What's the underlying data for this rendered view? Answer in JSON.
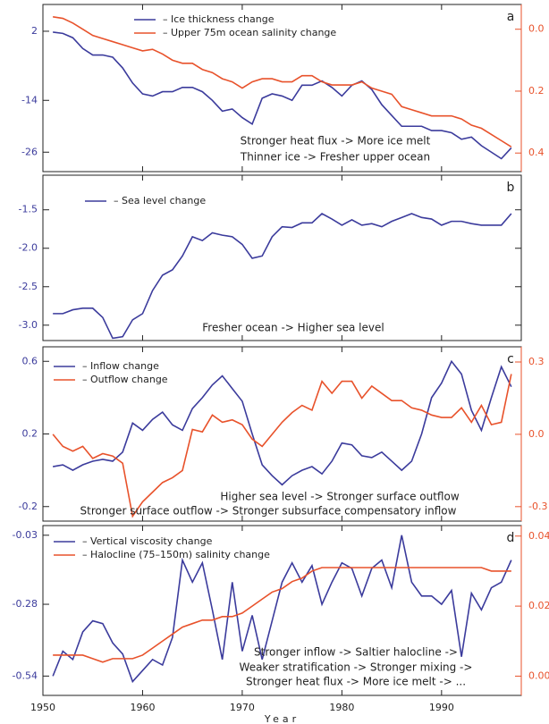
{
  "chart_data": [
    {
      "type": "line",
      "panel_label": "a",
      "x": [
        1951,
        1952,
        1953,
        1954,
        1955,
        1956,
        1957,
        1958,
        1959,
        1960,
        1961,
        1962,
        1963,
        1964,
        1965,
        1966,
        1967,
        1968,
        1969,
        1970,
        1971,
        1972,
        1973,
        1974,
        1975,
        1976,
        1977,
        1978,
        1979,
        1980,
        1981,
        1982,
        1983,
        1984,
        1985,
        1986,
        1987,
        1988,
        1989,
        1990,
        1991,
        1992,
        1993,
        1994,
        1995,
        1996,
        1997
      ],
      "xlim": [
        1950,
        1998
      ],
      "ylim": [
        -30.5,
        8.2
      ],
      "yticks": [
        2,
        -14,
        -26
      ],
      "y2lim": [
        0.46,
        -0.08
      ],
      "y2ticks": [
        {
          "value": 0,
          "label": "0.0"
        },
        {
          "value": 0.2,
          "label": "0.2"
        },
        {
          "value": 0.4,
          "label": "0.4"
        }
      ],
      "series": [
        {
          "name": "– Ice thickness change",
          "color": "#3b3b9c",
          "values": [
            1.8,
            1.5,
            0.5,
            -2,
            -3.5,
            -3.5,
            -4,
            -6.5,
            -10,
            -12.5,
            -13,
            -12,
            -12,
            -11,
            -11,
            -12,
            -14,
            -16.5,
            -16,
            -18,
            -19.5,
            -13.5,
            -12.5,
            -13,
            -14,
            -10.5,
            -10.5,
            -9.5,
            -11,
            -13,
            -10.5,
            -9.5,
            -11.5,
            -15,
            -17.5,
            -20,
            -20,
            -20,
            -21,
            -21,
            -21.5,
            -23,
            -22.5,
            -24.5,
            -26,
            -27.5,
            -25
          ]
        },
        {
          "name": "– Upper 75m ocean salinity change",
          "color": "#e8522b",
          "axis": "y2",
          "values": [
            -0.04,
            -0.035,
            -0.02,
            0,
            0.02,
            0.03,
            0.04,
            0.05,
            0.06,
            0.07,
            0.065,
            0.08,
            0.1,
            0.11,
            0.11,
            0.13,
            0.14,
            0.16,
            0.17,
            0.19,
            0.17,
            0.16,
            0.16,
            0.17,
            0.17,
            0.15,
            0.15,
            0.17,
            0.18,
            0.18,
            0.18,
            0.17,
            0.19,
            0.2,
            0.21,
            0.25,
            0.26,
            0.27,
            0.28,
            0.28,
            0.28,
            0.29,
            0.31,
            0.32,
            0.34,
            0.36,
            0.38
          ]
        }
      ],
      "annotations": [
        "Stronger heat flux -> More ice melt",
        "Thinner ice -> Fresher upper ocean"
      ]
    },
    {
      "type": "line",
      "panel_label": "b",
      "x": [
        1951,
        1952,
        1953,
        1954,
        1955,
        1956,
        1957,
        1958,
        1959,
        1960,
        1961,
        1962,
        1963,
        1964,
        1965,
        1966,
        1967,
        1968,
        1969,
        1970,
        1971,
        1972,
        1973,
        1974,
        1975,
        1976,
        1977,
        1978,
        1979,
        1980,
        1981,
        1982,
        1983,
        1984,
        1985,
        1986,
        1987,
        1988,
        1989,
        1990,
        1991,
        1992,
        1993,
        1994,
        1995,
        1996,
        1997
      ],
      "xlim": [
        1950,
        1998
      ],
      "ylim": [
        -3.2,
        -1.05
      ],
      "yticks": [
        -1.5,
        {
          "value": -2,
          "label": "-2.0"
        },
        -2.5,
        {
          "value": -3,
          "label": "-3.0"
        }
      ],
      "series": [
        {
          "name": "– Sea level change",
          "color": "#3b3b9c",
          "values": [
            -2.85,
            -2.85,
            -2.8,
            -2.78,
            -2.78,
            -2.9,
            -3.17,
            -3.15,
            -2.93,
            -2.85,
            -2.55,
            -2.35,
            -2.28,
            -2.1,
            -1.85,
            -1.9,
            -1.8,
            -1.83,
            -1.85,
            -1.95,
            -2.13,
            -2.1,
            -1.85,
            -1.72,
            -1.73,
            -1.67,
            -1.67,
            -1.55,
            -1.62,
            -1.7,
            -1.63,
            -1.7,
            -1.68,
            -1.72,
            -1.65,
            -1.6,
            -1.55,
            -1.6,
            -1.62,
            -1.7,
            -1.65,
            -1.65,
            -1.68,
            -1.7,
            -1.7,
            -1.7,
            -1.55
          ]
        }
      ],
      "annotations": [
        "Fresher ocean -> Higher sea level"
      ]
    },
    {
      "type": "line",
      "panel_label": "c",
      "x": [
        1951,
        1952,
        1953,
        1954,
        1955,
        1956,
        1957,
        1958,
        1959,
        1960,
        1961,
        1962,
        1963,
        1964,
        1965,
        1966,
        1967,
        1968,
        1969,
        1970,
        1971,
        1972,
        1973,
        1974,
        1975,
        1976,
        1977,
        1978,
        1979,
        1980,
        1981,
        1982,
        1983,
        1984,
        1985,
        1986,
        1987,
        1988,
        1989,
        1990,
        1991,
        1992,
        1993,
        1994,
        1995,
        1996,
        1997
      ],
      "xlim": [
        1950,
        1998
      ],
      "ylim": [
        -0.28,
        0.68
      ],
      "yticks": [
        0.6,
        0.2,
        -0.2
      ],
      "y2lim": [
        -0.36,
        0.363
      ],
      "y2ticks": [
        0.3,
        {
          "value": 0,
          "label": "0.0"
        },
        -0.3
      ],
      "series": [
        {
          "name": "– Inflow change",
          "color": "#3b3b9c",
          "values": [
            0.02,
            0.03,
            0,
            0.03,
            0.05,
            0.06,
            0.05,
            0.1,
            0.26,
            0.22,
            0.28,
            0.32,
            0.25,
            0.22,
            0.34,
            0.4,
            0.47,
            0.52,
            0.45,
            0.38,
            0.2,
            0.03,
            -0.03,
            -0.08,
            -0.03,
            0,
            0.02,
            -0.02,
            0.05,
            0.15,
            0.14,
            0.08,
            0.07,
            0.1,
            0.05,
            0,
            0.05,
            0.2,
            0.4,
            0.48,
            0.6,
            0.53,
            0.33,
            0.22,
            0.4,
            0.57,
            0.46
          ]
        },
        {
          "name": "– Outflow change",
          "color": "#e8522b",
          "axis": "y2",
          "values": [
            0,
            -0.05,
            -0.07,
            -0.05,
            -0.1,
            -0.08,
            -0.09,
            -0.12,
            -0.34,
            -0.28,
            -0.24,
            -0.2,
            -0.18,
            -0.15,
            0.02,
            0.01,
            0.08,
            0.05,
            0.06,
            0.04,
            -0.02,
            -0.05,
            0,
            0.05,
            0.09,
            0.12,
            0.1,
            0.22,
            0.17,
            0.22,
            0.22,
            0.15,
            0.2,
            0.17,
            0.14,
            0.14,
            0.11,
            0.1,
            0.08,
            0.07,
            0.07,
            0.11,
            0.05,
            0.12,
            0.04,
            0.05,
            0.25
          ]
        }
      ],
      "annotations": [
        "Higher sea level -> Stronger surface outflow",
        "Stronger surface outflow -> Stronger subsurface compensatory inflow"
      ]
    },
    {
      "type": "line",
      "panel_label": "d",
      "x": [
        1951,
        1952,
        1953,
        1954,
        1955,
        1956,
        1957,
        1958,
        1959,
        1960,
        1961,
        1962,
        1963,
        1964,
        1965,
        1966,
        1967,
        1968,
        1969,
        1970,
        1971,
        1972,
        1973,
        1974,
        1975,
        1976,
        1977,
        1978,
        1979,
        1980,
        1981,
        1982,
        1983,
        1984,
        1985,
        1986,
        1987,
        1988,
        1989,
        1990,
        1991,
        1992,
        1993,
        1994,
        1995,
        1996,
        1997
      ],
      "xlim": [
        1950,
        1998
      ],
      "xticks": [
        1950,
        1960,
        1970,
        1980,
        1990
      ],
      "xlabel": "Year",
      "ylim": [
        -0.61,
        0.005
      ],
      "yticks": [
        -0.03,
        -0.28,
        -0.54
      ],
      "y2lim": [
        -0.0055,
        0.043
      ],
      "y2ticks": [
        0.04,
        0.02,
        {
          "value": 0,
          "label": "0.00"
        }
      ],
      "series": [
        {
          "name": "– Vertical viscosity change",
          "color": "#3b3b9c",
          "values": [
            -0.54,
            -0.45,
            -0.48,
            -0.38,
            -0.34,
            -0.35,
            -0.42,
            -0.46,
            -0.56,
            -0.52,
            -0.48,
            -0.5,
            -0.4,
            -0.12,
            -0.2,
            -0.13,
            -0.3,
            -0.48,
            -0.2,
            -0.45,
            -0.32,
            -0.48,
            -0.34,
            -0.2,
            -0.13,
            -0.2,
            -0.14,
            -0.28,
            -0.2,
            -0.13,
            -0.15,
            -0.25,
            -0.15,
            -0.12,
            -0.22,
            -0.03,
            -0.2,
            -0.25,
            -0.25,
            -0.28,
            -0.23,
            -0.47,
            -0.24,
            -0.3,
            -0.22,
            -0.2,
            -0.12
          ]
        },
        {
          "name": "– Halocline (75–150m) salinity change",
          "color": "#e8522b",
          "axis": "y2",
          "values": [
            0.006,
            0.006,
            0.006,
            0.006,
            0.005,
            0.004,
            0.005,
            0.005,
            0.005,
            0.006,
            0.008,
            0.01,
            0.012,
            0.014,
            0.015,
            0.016,
            0.016,
            0.017,
            0.017,
            0.018,
            0.02,
            0.022,
            0.024,
            0.025,
            0.027,
            0.028,
            0.03,
            0.031,
            0.031,
            0.031,
            0.031,
            0.031,
            0.031,
            0.031,
            0.031,
            0.031,
            0.031,
            0.031,
            0.031,
            0.031,
            0.031,
            0.031,
            0.031,
            0.031,
            0.03,
            0.03,
            0.03
          ]
        }
      ],
      "annotations": [
        "Stronger inflow -> Saltier halocline ->",
        "Weaker stratification -> Stronger mixing ->",
        "Stronger heat flux -> More ice melt -> ..."
      ]
    }
  ]
}
